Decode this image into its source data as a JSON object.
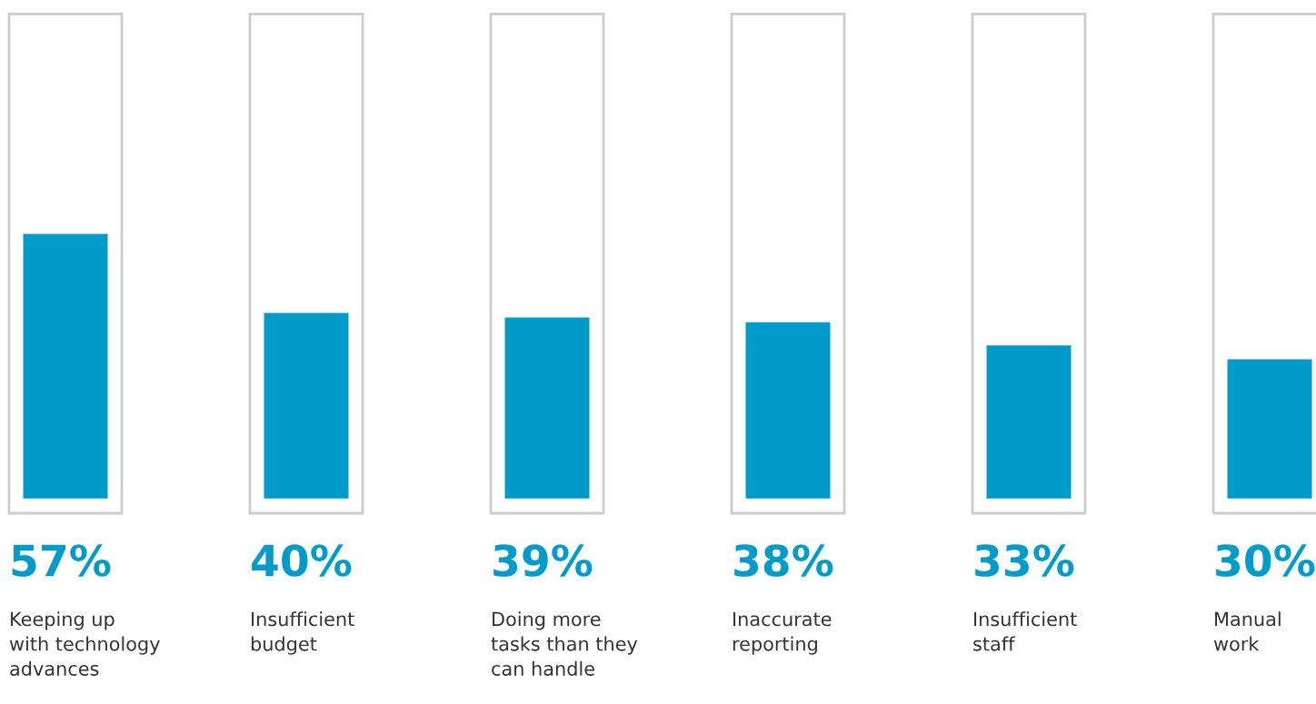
{
  "chart_data": {
    "type": "bar",
    "categories": [
      "Keeping up\nwith technology\nadvances",
      "Insufficient\nbudget",
      "Doing more\ntasks than they\ncan handle",
      "Inaccurate\nreporting",
      "Insufficient\nstaff",
      "Manual\nwork"
    ],
    "values": [
      57,
      40,
      39,
      38,
      33,
      30
    ],
    "value_labels": [
      "57%",
      "40%",
      "39%",
      "38%",
      "33%",
      "30%"
    ],
    "color": "#009bc9",
    "tick_labels": false,
    "legend": false,
    "grid": false
  }
}
